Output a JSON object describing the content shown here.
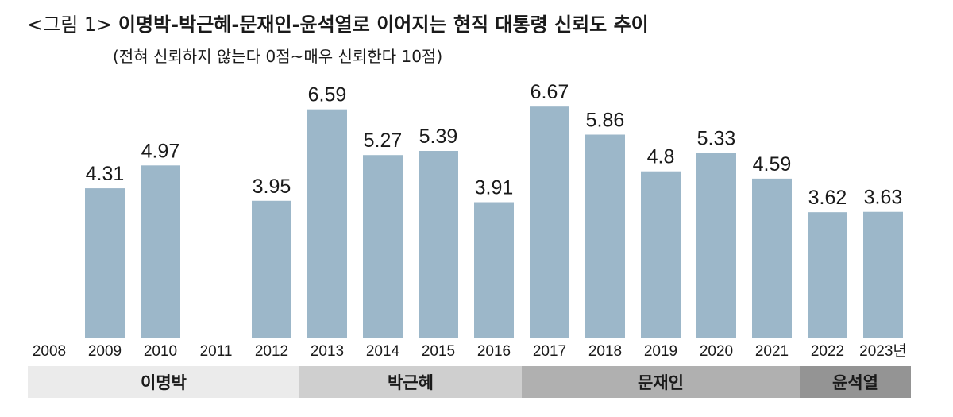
{
  "title": {
    "figure_label": "<그림 1>",
    "text": "이명박-박근혜-문재인-윤석열로 이어지는 현직 대통령 신뢰도 추이",
    "subtitle": "(전혀 신뢰하지 않는다 0점~매우 신뢰한다 10점)"
  },
  "chart_data": {
    "type": "bar",
    "title": "<그림 1> 이명박-박근혜-문재인-윤석열로 이어지는 현직 대통령 신뢰도 추이",
    "subtitle": "(전혀 신뢰하지 않는다 0점~매우 신뢰한다 10점)",
    "categories": [
      "2008",
      "2009",
      "2010",
      "2011",
      "2012",
      "2013",
      "2014",
      "2015",
      "2016",
      "2017",
      "2018",
      "2019",
      "2020",
      "2021",
      "2022",
      "2023년"
    ],
    "values": [
      null,
      4.31,
      4.97,
      null,
      3.95,
      6.59,
      5.27,
      5.39,
      3.91,
      6.67,
      5.86,
      4.8,
      5.33,
      4.59,
      3.62,
      3.63
    ],
    "value_labels": [
      "",
      "4.31",
      "4.97",
      "",
      "3.95",
      "6.59",
      "5.27",
      "5.39",
      "3.91",
      "6.67",
      "5.86",
      "4.8",
      "5.33",
      "4.59",
      "3.62",
      "3.63"
    ],
    "ylim": [
      0,
      10
    ],
    "grid": false,
    "legend": "none",
    "bar_color": "#9cb7c9",
    "groups": [
      {
        "name": "이명박",
        "from": "2008",
        "to": "2012",
        "color": "#ebebeb"
      },
      {
        "name": "박근혜",
        "from": "2013",
        "to": "2016",
        "color": "#cfcfcf"
      },
      {
        "name": "문재인",
        "from": "2017",
        "to": "2021",
        "color": "#b0b0b0"
      },
      {
        "name": "윤석열",
        "from": "2022",
        "to": "2023년",
        "color": "#949494"
      }
    ]
  }
}
